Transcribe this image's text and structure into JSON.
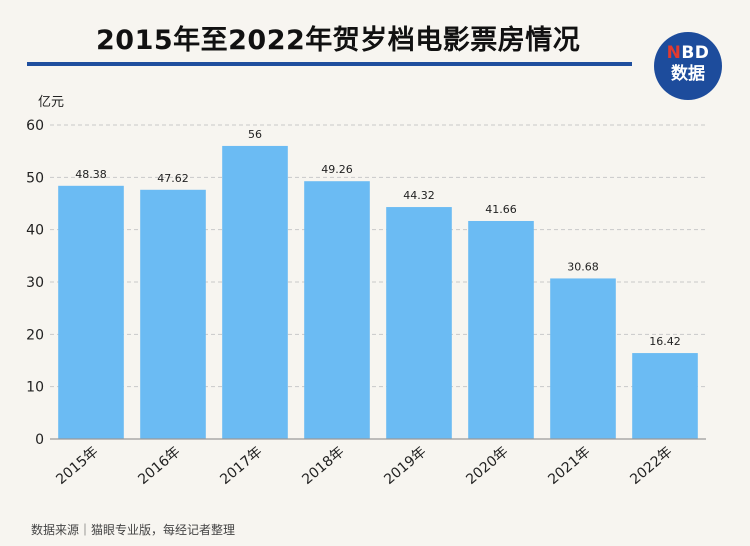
{
  "header": {
    "title": "2015年至2022年贺岁档电影票房情况",
    "logo_top": "NBD",
    "logo_bottom": "数据"
  },
  "footer": {
    "source": "数据来源｜猫眼专业版，每经记者整理"
  },
  "colors": {
    "bar": "#6bbbf3",
    "rule": "#1f4f9e",
    "logo_bg": "#1d4c9c",
    "logo_accent": "#e33a2f"
  },
  "chart_data": {
    "type": "bar",
    "title": "2015年至2022年贺岁档电影票房情况",
    "ylabel": "亿元",
    "xlabel": "",
    "categories": [
      "2015年",
      "2016年",
      "2017年",
      "2018年",
      "2019年",
      "2020年",
      "2021年",
      "2022年"
    ],
    "values": [
      48.38,
      47.62,
      56,
      49.26,
      44.32,
      41.66,
      30.68,
      16.42
    ],
    "value_labels": [
      "48.38",
      "47.62",
      "56",
      "49.26",
      "44.32",
      "41.66",
      "30.68",
      "16.42"
    ],
    "ylim": [
      0,
      60
    ],
    "yticks": [
      0,
      10,
      20,
      30,
      40,
      50,
      60
    ],
    "grid": true
  }
}
